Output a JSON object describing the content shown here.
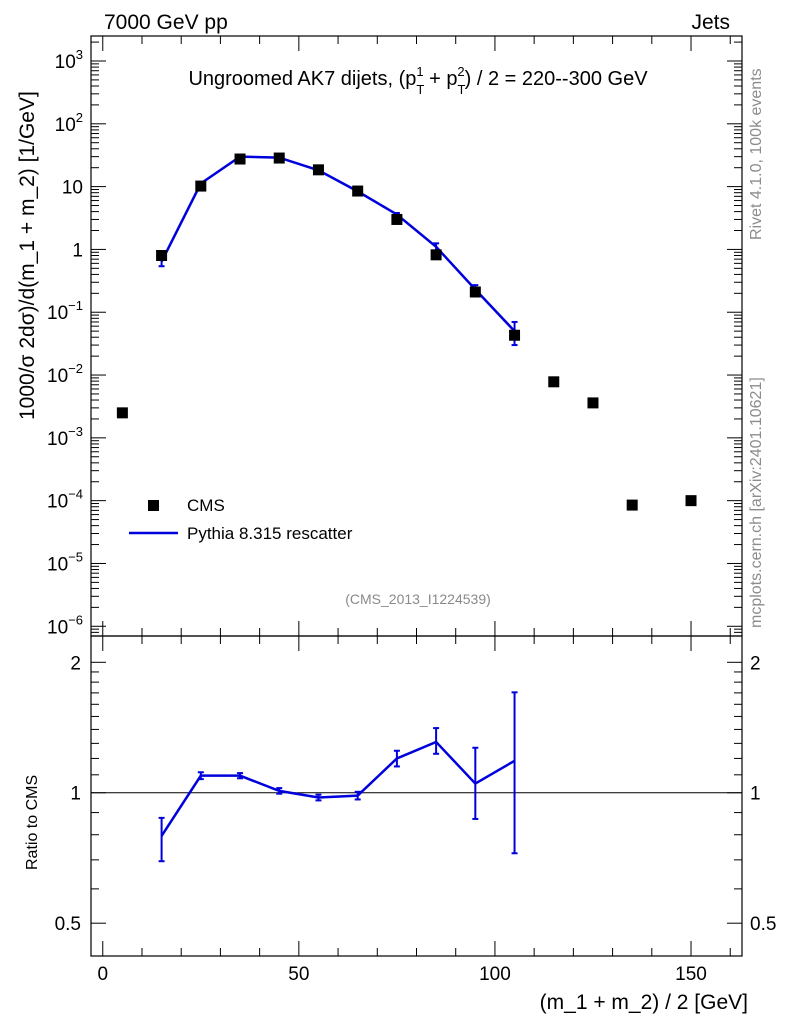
{
  "header": {
    "left": "7000 GeV pp",
    "right": "Jets",
    "analysis": "(CMS_2013_I1224539)",
    "side_top": "Rivet 4.1.0,  100k events",
    "side_bottom": "mcplots.cern.ch [arXiv:2401.10621]"
  },
  "chart_data": [
    {
      "type": "scatter",
      "panel": "main",
      "title": "Ungroomed AK7 dijets, (p_T^1 + p_T^2) / 2 = 220--300 GeV",
      "ylabel": "1000/σ  2dσ)/d(m_1 + m_2) [1/GeV]",
      "yscale": "log",
      "xlim": [
        -3,
        163
      ],
      "ylim": [
        7e-07,
        2500
      ],
      "legend_position": "left",
      "series": [
        {
          "name": "CMS",
          "style": "marker",
          "color": "#000000",
          "x": [
            5,
            15,
            25,
            35,
            45,
            55,
            65,
            75,
            85,
            95,
            105,
            115,
            125,
            135,
            150
          ],
          "y": [
            0.0025,
            0.8,
            10.2,
            27.5,
            28.5,
            18.5,
            8.5,
            3.0,
            0.82,
            0.21,
            0.043,
            0.0078,
            0.0036,
            8.5e-05,
            0.0001
          ]
        },
        {
          "name": "Pythia 8.315 rescatter",
          "style": "line",
          "color": "#0000dd",
          "x": [
            15,
            25,
            35,
            45,
            55,
            65,
            75,
            85,
            95,
            105
          ],
          "y": [
            0.64,
            11.2,
            30.0,
            29.0,
            18.2,
            8.4,
            3.6,
            1.1,
            0.23,
            0.05
          ],
          "yerr": [
            0.1,
            0.5,
            1.0,
            1.0,
            0.6,
            0.3,
            0.2,
            0.15,
            0.04,
            0.02
          ]
        }
      ],
      "yticks": [
        {
          "value": 1e-06,
          "label": "10",
          "exp": "−6"
        },
        {
          "value": 1e-05,
          "label": "10",
          "exp": "−5"
        },
        {
          "value": 0.0001,
          "label": "10",
          "exp": "−4"
        },
        {
          "value": 0.001,
          "label": "10",
          "exp": "−3"
        },
        {
          "value": 0.01,
          "label": "10",
          "exp": "−2"
        },
        {
          "value": 0.1,
          "label": "10",
          "exp": "−1"
        },
        {
          "value": 1,
          "label": "1",
          "exp": ""
        },
        {
          "value": 10,
          "label": "10",
          "exp": ""
        },
        {
          "value": 100,
          "label": "10",
          "exp": "2"
        },
        {
          "value": 1000,
          "label": "10",
          "exp": "3"
        }
      ]
    },
    {
      "type": "line",
      "panel": "ratio",
      "xlabel": "(m_1 + m_2) / 2 [GeV]",
      "ylabel": "Ratio to CMS",
      "yscale": "log",
      "xlim": [
        -3,
        163
      ],
      "ylim": [
        0.42,
        2.3
      ],
      "reference_line": 1,
      "series": [
        {
          "name": "Pythia 8.315 rescatter",
          "color": "#0000dd",
          "x": [
            15,
            25,
            35,
            45,
            55,
            65,
            75,
            85,
            95,
            105
          ],
          "y": [
            0.795,
            1.095,
            1.095,
            1.01,
            0.975,
            0.985,
            1.2,
            1.31,
            1.05,
            1.185
          ],
          "yerr_low": [
            0.1,
            0.02,
            0.015,
            0.015,
            0.015,
            0.02,
            0.05,
            0.08,
            0.18,
            0.46
          ],
          "yerr_high": [
            0.08,
            0.02,
            0.015,
            0.015,
            0.015,
            0.02,
            0.05,
            0.1,
            0.22,
            0.52
          ]
        }
      ],
      "yticks": [
        {
          "value": 0.5,
          "label": "0.5"
        },
        {
          "value": 1,
          "label": "1"
        },
        {
          "value": 2,
          "label": "2"
        }
      ],
      "xticks": [
        {
          "value": 0,
          "label": "0"
        },
        {
          "value": 50,
          "label": "50"
        },
        {
          "value": 100,
          "label": "100"
        },
        {
          "value": 150,
          "label": "150"
        }
      ]
    }
  ]
}
